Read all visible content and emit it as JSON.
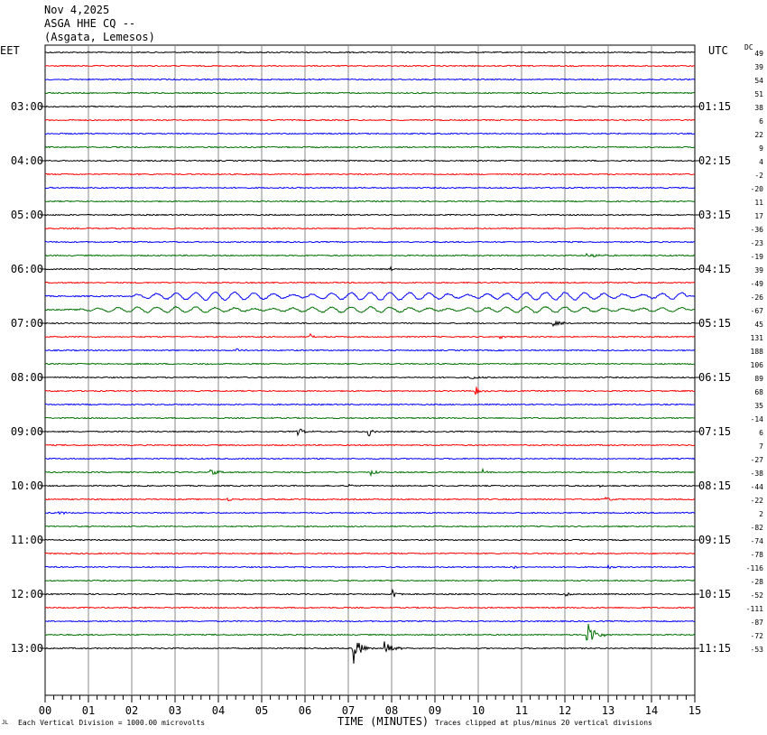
{
  "header": {
    "date": "Nov 4,2025",
    "station": "ASGA HHE CQ --",
    "location": "(Asgata, Lemesos)"
  },
  "left_axis_label": "EET",
  "right_axis_label": "UTC",
  "dc_label": "DC",
  "footer": {
    "left_note": "Each Vertical Division = 1000.00 microvolts",
    "xlabel": "TIME (MINUTES)",
    "right_note": "Traces clipped at plus/minus 20 vertical divisions",
    "corner_mark": "JL"
  },
  "chart_data": {
    "type": "line",
    "title": "ASGA HHE CQ --",
    "xlabel": "TIME (MINUTES)",
    "x_ticks": [
      "00",
      "01",
      "02",
      "03",
      "04",
      "05",
      "06",
      "07",
      "08",
      "09",
      "10",
      "11",
      "12",
      "13",
      "14",
      "15"
    ],
    "xlim": [
      0,
      15
    ],
    "grid": true,
    "trace_colors": [
      "#000000",
      "#ff0000",
      "#0000ff",
      "#007000"
    ],
    "left_hour_labels": [
      "03:00",
      "04:00",
      "05:00",
      "06:00",
      "07:00",
      "08:00",
      "09:00",
      "10:00",
      "11:00",
      "12:00",
      "13:00"
    ],
    "right_hour_labels": [
      "01:15",
      "02:15",
      "03:15",
      "04:15",
      "05:15",
      "06:15",
      "07:15",
      "08:15",
      "09:15",
      "10:15",
      "11:15"
    ],
    "dc_offsets": [
      "49",
      "39",
      "54",
      "51",
      "38",
      "6",
      "22",
      "9",
      "4",
      "-2",
      "-20",
      "11",
      "17",
      "-36",
      "-23",
      "-19",
      "39",
      "-49",
      "-26",
      "-67",
      "45",
      "131",
      "188",
      "106",
      "89",
      "68",
      "35",
      "-14",
      "6",
      "7",
      "-27",
      "-38",
      "-44",
      "-22",
      "2",
      "-82",
      "-74",
      "-78",
      "-116",
      "-28",
      "-52",
      "-111",
      "-87",
      "-72",
      "-53"
    ],
    "events": [
      {
        "trace": 15,
        "start": 12.5,
        "end": 13.6,
        "amp": 3
      },
      {
        "trace": 16,
        "start": 7.95,
        "end": 8.1,
        "amp": 6
      },
      {
        "trace": 18,
        "start": 2.0,
        "end": 14.8,
        "amp": 7,
        "type": "wave"
      },
      {
        "trace": 19,
        "start": 0.8,
        "end": 14.8,
        "amp": 5,
        "type": "wave"
      },
      {
        "trace": 20,
        "start": 11.7,
        "end": 12.3,
        "amp": 4
      },
      {
        "trace": 21,
        "start": 6.1,
        "end": 6.25,
        "amp": 6
      },
      {
        "trace": 21,
        "start": 10.5,
        "end": 10.7,
        "amp": 4
      },
      {
        "trace": 22,
        "start": 4.4,
        "end": 4.8,
        "amp": 3
      },
      {
        "trace": 23,
        "start": 3.7,
        "end": 4.0,
        "amp": 2
      },
      {
        "trace": 24,
        "start": 9.8,
        "end": 10.4,
        "amp": 3
      },
      {
        "trace": 25,
        "start": 9.9,
        "end": 10.3,
        "amp": 7
      },
      {
        "trace": 28,
        "start": 5.8,
        "end": 6.3,
        "amp": 5
      },
      {
        "trace": 28,
        "start": 7.45,
        "end": 7.65,
        "amp": 11
      },
      {
        "trace": 31,
        "start": 3.8,
        "end": 4.3,
        "amp": 4
      },
      {
        "trace": 31,
        "start": 7.5,
        "end": 7.9,
        "amp": 4
      },
      {
        "trace": 31,
        "start": 10.1,
        "end": 10.3,
        "amp": 3
      },
      {
        "trace": 32,
        "start": 7.0,
        "end": 7.2,
        "amp": 4
      },
      {
        "trace": 32,
        "start": 12.8,
        "end": 13.0,
        "amp": 3
      },
      {
        "trace": 33,
        "start": 4.2,
        "end": 4.5,
        "amp": 3
      },
      {
        "trace": 33,
        "start": 12.9,
        "end": 13.4,
        "amp": 3
      },
      {
        "trace": 34,
        "start": 0.3,
        "end": 0.8,
        "amp": 3
      },
      {
        "trace": 38,
        "start": 10.8,
        "end": 11.2,
        "amp": 4
      },
      {
        "trace": 38,
        "start": 13.0,
        "end": 13.2,
        "amp": 3
      },
      {
        "trace": 40,
        "start": 8.0,
        "end": 8.4,
        "amp": 8
      },
      {
        "trace": 40,
        "start": 12.0,
        "end": 12.4,
        "amp": 3
      },
      {
        "trace": 43,
        "start": 12.5,
        "end": 13.1,
        "amp": 17
      },
      {
        "trace": 44,
        "start": 7.1,
        "end": 7.6,
        "amp": 20
      },
      {
        "trace": 44,
        "start": 7.8,
        "end": 8.3,
        "amp": 16
      }
    ]
  }
}
